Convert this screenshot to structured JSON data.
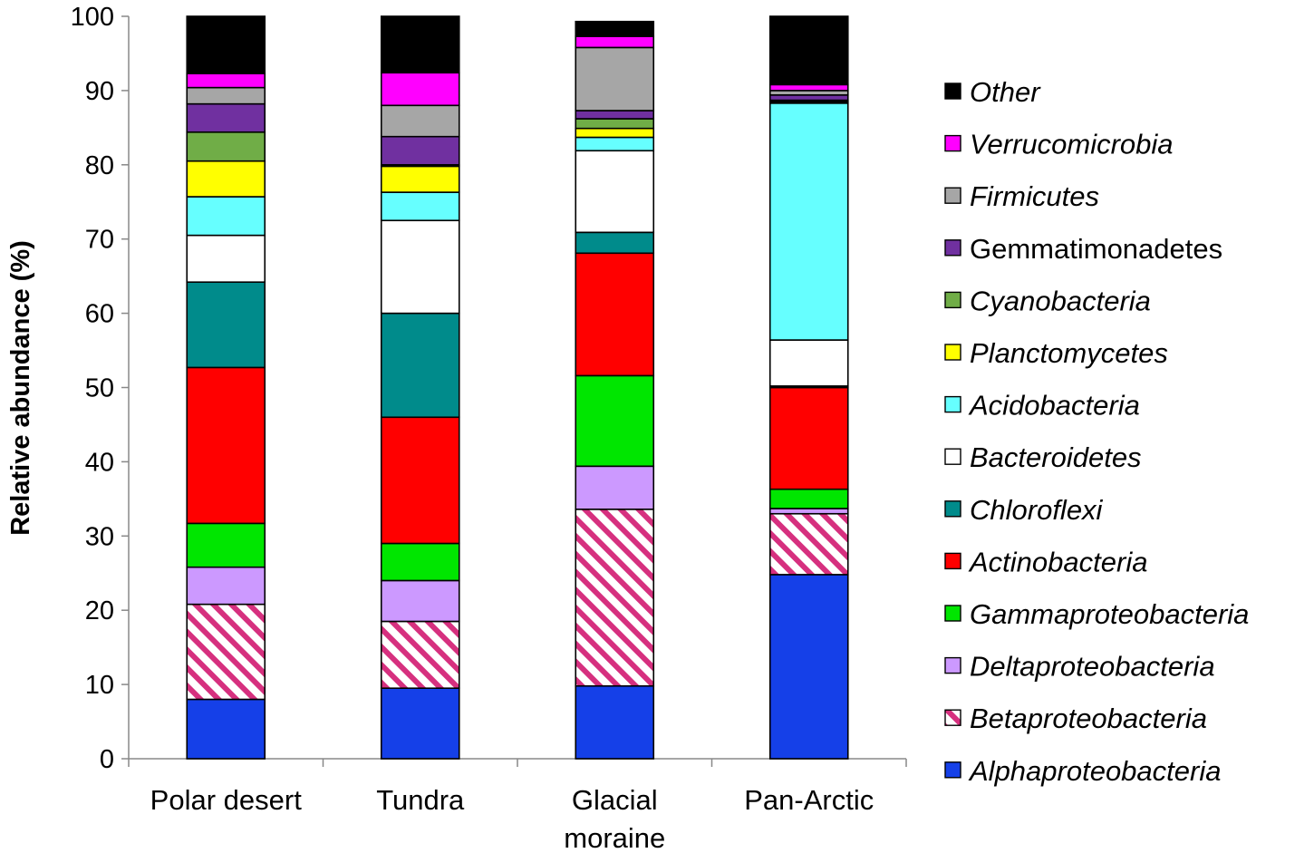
{
  "chart_data": {
    "type": "bar",
    "stacked": true,
    "ylabel": "Relative abundance (%)",
    "xlabel": "",
    "title": "",
    "ylim": [
      0,
      100
    ],
    "yticks": [
      0,
      10,
      20,
      30,
      40,
      50,
      60,
      70,
      80,
      90,
      100
    ],
    "categories": [
      [
        "Polar desert"
      ],
      [
        "Tundra"
      ],
      [
        "Glacial",
        "moraine"
      ],
      [
        "Pan-Arctic"
      ]
    ],
    "legend_position": "right",
    "series": [
      {
        "name": "Alphaproteobacteria",
        "color": "#1540e8",
        "italic": true,
        "pattern": "solid",
        "values": [
          8,
          9.5,
          9.8,
          24.8
        ]
      },
      {
        "name": "Betaproteobacteria",
        "color": "#d6307f",
        "italic": true,
        "pattern": "hatch",
        "values": [
          12.8,
          9,
          23.8,
          8.2
        ]
      },
      {
        "name": "Deltaproteobacteria",
        "color": "#cc99ff",
        "italic": true,
        "pattern": "solid",
        "values": [
          5,
          5.5,
          5.8,
          0.7
        ]
      },
      {
        "name": "Gammaproteobacteria",
        "color": "#00e600",
        "italic": true,
        "pattern": "solid",
        "values": [
          5.9,
          5,
          12.2,
          2.6
        ]
      },
      {
        "name": "Actinobacteria",
        "color": "#ff0000",
        "italic": true,
        "pattern": "solid",
        "values": [
          21,
          17,
          16.5,
          13.7
        ]
      },
      {
        "name": "Chloroflexi",
        "color": "#008b8b",
        "italic": true,
        "pattern": "solid",
        "values": [
          11.5,
          14,
          2.8,
          0.2
        ]
      },
      {
        "name": "Bacteroidetes",
        "color": "#ffffff",
        "italic": true,
        "pattern": "solid",
        "values": [
          6.3,
          12.5,
          11,
          6.2
        ]
      },
      {
        "name": "Acidobacteria",
        "color": "#66ffff",
        "italic": true,
        "pattern": "solid",
        "values": [
          5.2,
          3.8,
          1.8,
          31.9
        ]
      },
      {
        "name": "Planctomycetes",
        "color": "#ffff00",
        "italic": true,
        "pattern": "solid",
        "values": [
          4.8,
          3.5,
          1.2,
          0.2
        ]
      },
      {
        "name": "Cyanobacteria",
        "color": "#70ad47",
        "italic": true,
        "pattern": "solid",
        "values": [
          3.9,
          0.2,
          1.3,
          0.2
        ]
      },
      {
        "name": "Gemmatimonadetes",
        "color": "#7030a0",
        "italic": false,
        "pattern": "solid",
        "values": [
          3.8,
          3.8,
          1.1,
          0.7
        ]
      },
      {
        "name": "Firmicutes",
        "color": "#a6a6a6",
        "italic": true,
        "pattern": "solid",
        "values": [
          2.2,
          4.2,
          8.5,
          0.6
        ]
      },
      {
        "name": "Verrucomicrobia",
        "color": "#ff00ff",
        "italic": true,
        "pattern": "solid",
        "values": [
          1.9,
          4.4,
          1.5,
          0.8
        ]
      },
      {
        "name": "Other",
        "color": "#000000",
        "italic": true,
        "pattern": "solid",
        "values": [
          7.7,
          7.6,
          2.0,
          9.2
        ]
      }
    ]
  }
}
